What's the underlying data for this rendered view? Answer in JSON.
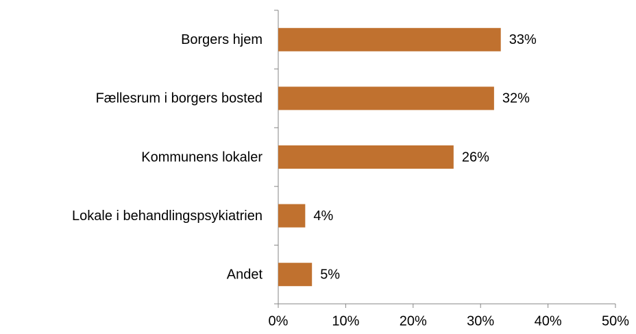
{
  "chart_data": {
    "type": "barh",
    "categories": [
      "Borgers hjem",
      "Fællesrum i borgers bosted",
      "Kommunens lokaler",
      "Lokale i behandlingspsykiatrien",
      "Andet"
    ],
    "values": [
      33,
      32,
      26,
      4,
      5
    ],
    "value_labels": [
      "33%",
      "32%",
      "26%",
      "4%",
      "5%"
    ],
    "color": "#c0712f",
    "xlim": [
      0,
      50
    ],
    "xticks": [
      {
        "value": 0,
        "label": "0%"
      },
      {
        "value": 10,
        "label": "10%"
      },
      {
        "value": 20,
        "label": "20%"
      },
      {
        "value": 30,
        "label": "30%"
      },
      {
        "value": 40,
        "label": "40%"
      },
      {
        "value": 50,
        "label": "50%"
      }
    ],
    "grid": false
  }
}
